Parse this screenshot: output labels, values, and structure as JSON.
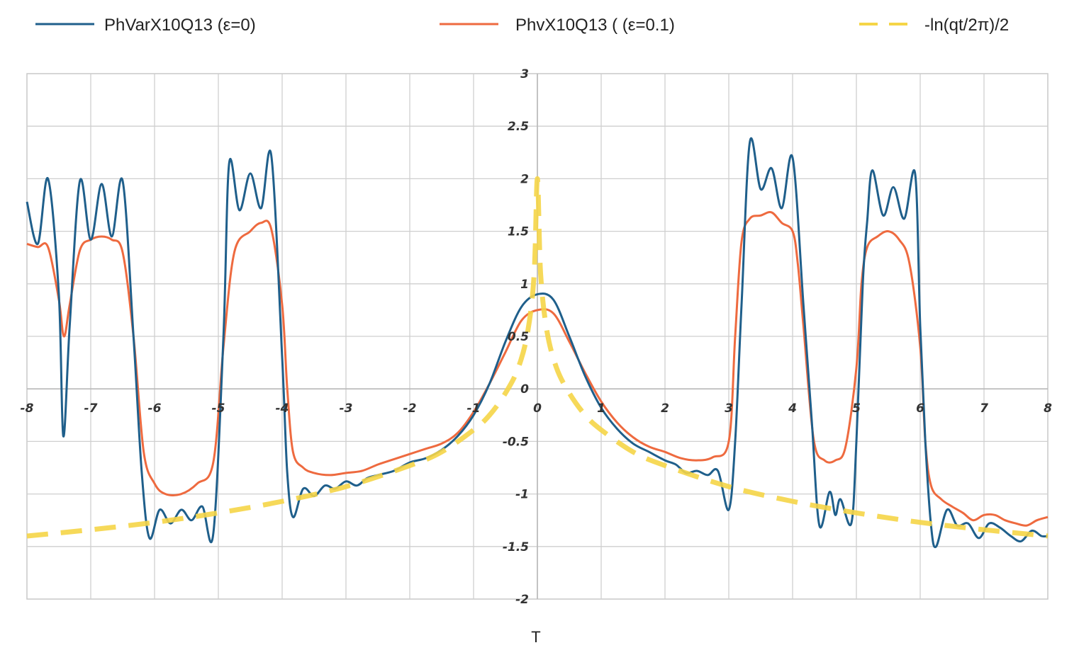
{
  "chart_data": {
    "type": "line",
    "title": "",
    "xlabel": "T",
    "ylabel": "",
    "xlim": [
      -8,
      8
    ],
    "ylim": [
      -2,
      3
    ],
    "grid": true,
    "legend_position": "top",
    "x_ticks": [
      "-8",
      "-7",
      "-6",
      "-5",
      "-4",
      "-3",
      "-2",
      "-1",
      "0",
      "1",
      "2",
      "3",
      "4",
      "5",
      "6",
      "7",
      "8"
    ],
    "y_ticks": [
      "3",
      "2.5",
      "2",
      "1.5",
      "1",
      "0.5",
      "0",
      "-0.5",
      "-1",
      "-1.5",
      "-2"
    ],
    "series": [
      {
        "name": "PhVarX10Q13  (ε=0)",
        "color": "#1f5f8b",
        "style": "solid",
        "points": [
          [
            -8.0,
            1.78
          ],
          [
            -7.83,
            1.38
          ],
          [
            -7.67,
            2.0
          ],
          [
            -7.5,
            0.9
          ],
          [
            -7.43,
            -0.45
          ],
          [
            -7.33,
            0.6
          ],
          [
            -7.17,
            1.98
          ],
          [
            -7.0,
            1.42
          ],
          [
            -6.83,
            1.95
          ],
          [
            -6.67,
            1.45
          ],
          [
            -6.5,
            1.98
          ],
          [
            -6.33,
            0.5
          ],
          [
            -6.2,
            -0.8
          ],
          [
            -6.08,
            -1.42
          ],
          [
            -5.92,
            -1.15
          ],
          [
            -5.75,
            -1.28
          ],
          [
            -5.58,
            -1.15
          ],
          [
            -5.42,
            -1.25
          ],
          [
            -5.25,
            -1.12
          ],
          [
            -5.08,
            -1.38
          ],
          [
            -4.92,
            0.5
          ],
          [
            -4.83,
            2.15
          ],
          [
            -4.67,
            1.7
          ],
          [
            -4.5,
            2.05
          ],
          [
            -4.33,
            1.72
          ],
          [
            -4.17,
            2.22
          ],
          [
            -4.0,
            0.3
          ],
          [
            -3.92,
            -0.8
          ],
          [
            -3.83,
            -1.22
          ],
          [
            -3.67,
            -0.95
          ],
          [
            -3.5,
            -1.02
          ],
          [
            -3.33,
            -0.92
          ],
          [
            -3.17,
            -0.95
          ],
          [
            -3.0,
            -0.88
          ],
          [
            -2.83,
            -0.92
          ],
          [
            -2.67,
            -0.85
          ],
          [
            -2.5,
            -0.82
          ],
          [
            -2.25,
            -0.78
          ],
          [
            -2.0,
            -0.7
          ],
          [
            -1.75,
            -0.66
          ],
          [
            -1.5,
            -0.58
          ],
          [
            -1.25,
            -0.45
          ],
          [
            -1.0,
            -0.25
          ],
          [
            -0.75,
            0.05
          ],
          [
            -0.5,
            0.45
          ],
          [
            -0.25,
            0.78
          ],
          [
            0.0,
            0.9
          ],
          [
            0.25,
            0.85
          ],
          [
            0.5,
            0.5
          ],
          [
            0.75,
            0.12
          ],
          [
            1.0,
            -0.18
          ],
          [
            1.25,
            -0.38
          ],
          [
            1.5,
            -0.52
          ],
          [
            1.75,
            -0.6
          ],
          [
            2.0,
            -0.68
          ],
          [
            2.17,
            -0.72
          ],
          [
            2.33,
            -0.8
          ],
          [
            2.5,
            -0.78
          ],
          [
            2.67,
            -0.82
          ],
          [
            2.83,
            -0.78
          ],
          [
            3.0,
            -1.15
          ],
          [
            3.1,
            -0.5
          ],
          [
            3.2,
            0.8
          ],
          [
            3.33,
            2.35
          ],
          [
            3.5,
            1.9
          ],
          [
            3.67,
            2.1
          ],
          [
            3.83,
            1.72
          ],
          [
            4.0,
            2.2
          ],
          [
            4.17,
            0.8
          ],
          [
            4.3,
            -0.3
          ],
          [
            4.42,
            -1.3
          ],
          [
            4.58,
            -0.98
          ],
          [
            4.67,
            -1.2
          ],
          [
            4.75,
            -1.05
          ],
          [
            4.92,
            -1.28
          ],
          [
            5.0,
            -0.5
          ],
          [
            5.1,
            1.0
          ],
          [
            5.17,
            1.6
          ],
          [
            5.25,
            2.08
          ],
          [
            5.42,
            1.65
          ],
          [
            5.58,
            1.92
          ],
          [
            5.75,
            1.62
          ],
          [
            5.92,
            2.05
          ],
          [
            6.0,
            0.6
          ],
          [
            6.08,
            -0.5
          ],
          [
            6.17,
            -1.3
          ],
          [
            6.25,
            -1.5
          ],
          [
            6.42,
            -1.15
          ],
          [
            6.58,
            -1.3
          ],
          [
            6.75,
            -1.28
          ],
          [
            6.92,
            -1.42
          ],
          [
            7.08,
            -1.28
          ],
          [
            7.25,
            -1.32
          ],
          [
            7.42,
            -1.4
          ],
          [
            7.58,
            -1.45
          ],
          [
            7.75,
            -1.35
          ],
          [
            7.9,
            -1.4
          ],
          [
            8.0,
            -1.4
          ]
        ]
      },
      {
        "name": "PhvX10Q13 (  (ε=0.1)",
        "color": "#ee6a3f",
        "style": "solid",
        "points": [
          [
            -8.0,
            1.38
          ],
          [
            -7.83,
            1.35
          ],
          [
            -7.67,
            1.35
          ],
          [
            -7.5,
            0.85
          ],
          [
            -7.42,
            0.5
          ],
          [
            -7.33,
            0.8
          ],
          [
            -7.17,
            1.32
          ],
          [
            -7.0,
            1.42
          ],
          [
            -6.83,
            1.45
          ],
          [
            -6.67,
            1.42
          ],
          [
            -6.5,
            1.3
          ],
          [
            -6.33,
            0.5
          ],
          [
            -6.17,
            -0.6
          ],
          [
            -6.0,
            -0.9
          ],
          [
            -5.83,
            -1.0
          ],
          [
            -5.58,
            -1.0
          ],
          [
            -5.33,
            -0.9
          ],
          [
            -5.08,
            -0.7
          ],
          [
            -4.92,
            0.4
          ],
          [
            -4.75,
            1.3
          ],
          [
            -4.5,
            1.5
          ],
          [
            -4.33,
            1.58
          ],
          [
            -4.17,
            1.52
          ],
          [
            -4.0,
            0.8
          ],
          [
            -3.92,
            0.0
          ],
          [
            -3.83,
            -0.6
          ],
          [
            -3.67,
            -0.75
          ],
          [
            -3.5,
            -0.8
          ],
          [
            -3.25,
            -0.82
          ],
          [
            -3.0,
            -0.8
          ],
          [
            -2.75,
            -0.78
          ],
          [
            -2.5,
            -0.72
          ],
          [
            -2.25,
            -0.67
          ],
          [
            -2.0,
            -0.62
          ],
          [
            -1.75,
            -0.57
          ],
          [
            -1.5,
            -0.52
          ],
          [
            -1.25,
            -0.42
          ],
          [
            -1.0,
            -0.22
          ],
          [
            -0.75,
            0.05
          ],
          [
            -0.5,
            0.35
          ],
          [
            -0.25,
            0.65
          ],
          [
            0.0,
            0.75
          ],
          [
            0.25,
            0.72
          ],
          [
            0.5,
            0.45
          ],
          [
            0.75,
            0.15
          ],
          [
            1.0,
            -0.12
          ],
          [
            1.25,
            -0.32
          ],
          [
            1.5,
            -0.46
          ],
          [
            1.75,
            -0.55
          ],
          [
            2.0,
            -0.6
          ],
          [
            2.25,
            -0.66
          ],
          [
            2.5,
            -0.68
          ],
          [
            2.75,
            -0.65
          ],
          [
            3.0,
            -0.5
          ],
          [
            3.1,
            0.5
          ],
          [
            3.2,
            1.4
          ],
          [
            3.33,
            1.62
          ],
          [
            3.5,
            1.65
          ],
          [
            3.67,
            1.68
          ],
          [
            3.83,
            1.58
          ],
          [
            4.0,
            1.5
          ],
          [
            4.08,
            1.2
          ],
          [
            4.17,
            0.6
          ],
          [
            4.33,
            -0.48
          ],
          [
            4.5,
            -0.68
          ],
          [
            4.67,
            -0.68
          ],
          [
            4.83,
            -0.55
          ],
          [
            5.0,
            0.2
          ],
          [
            5.08,
            1.0
          ],
          [
            5.17,
            1.35
          ],
          [
            5.33,
            1.45
          ],
          [
            5.5,
            1.5
          ],
          [
            5.67,
            1.42
          ],
          [
            5.83,
            1.2
          ],
          [
            6.0,
            0.4
          ],
          [
            6.08,
            -0.5
          ],
          [
            6.17,
            -0.92
          ],
          [
            6.33,
            -1.05
          ],
          [
            6.5,
            -1.12
          ],
          [
            6.67,
            -1.18
          ],
          [
            6.83,
            -1.25
          ],
          [
            7.0,
            -1.2
          ],
          [
            7.17,
            -1.2
          ],
          [
            7.33,
            -1.25
          ],
          [
            7.5,
            -1.28
          ],
          [
            7.67,
            -1.3
          ],
          [
            7.83,
            -1.25
          ],
          [
            8.0,
            -1.22
          ]
        ]
      },
      {
        "name": "-ln(qt/2π)/2",
        "color": "#f5d547",
        "style": "dashed",
        "points": [
          [
            -8.0,
            -1.4
          ],
          [
            -7.0,
            -1.34
          ],
          [
            -6.0,
            -1.27
          ],
          [
            -5.0,
            -1.18
          ],
          [
            -4.0,
            -1.07
          ],
          [
            -3.0,
            -0.93
          ],
          [
            -2.0,
            -0.73
          ],
          [
            -1.5,
            -0.6
          ],
          [
            -1.0,
            -0.39
          ],
          [
            -0.75,
            -0.25
          ],
          [
            -0.5,
            -0.04
          ],
          [
            -0.3,
            0.2
          ],
          [
            -0.15,
            0.55
          ],
          [
            -0.05,
            1.1
          ],
          [
            0.0,
            2.0
          ],
          [
            0.05,
            1.1
          ],
          [
            0.15,
            0.55
          ],
          [
            0.3,
            0.2
          ],
          [
            0.5,
            -0.04
          ],
          [
            0.75,
            -0.25
          ],
          [
            1.0,
            -0.39
          ],
          [
            1.5,
            -0.6
          ],
          [
            2.0,
            -0.73
          ],
          [
            3.0,
            -0.93
          ],
          [
            4.0,
            -1.07
          ],
          [
            5.0,
            -1.18
          ],
          [
            6.0,
            -1.27
          ],
          [
            7.0,
            -1.34
          ],
          [
            8.0,
            -1.4
          ]
        ]
      }
    ]
  }
}
